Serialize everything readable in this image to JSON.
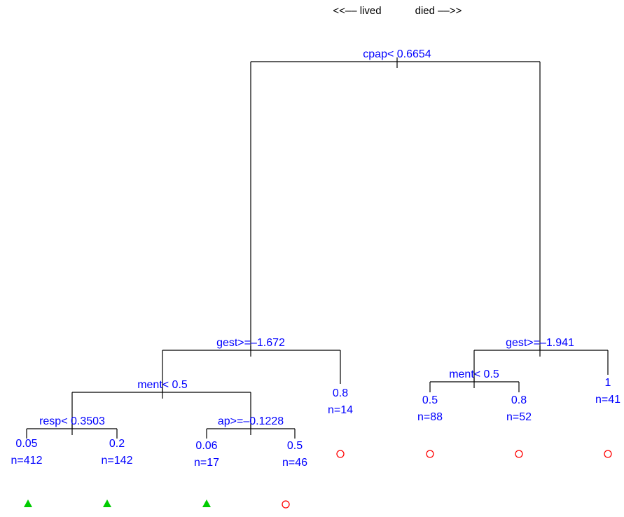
{
  "header": {
    "left": "<<–– lived",
    "right": "died ––>>"
  },
  "splits": [
    {
      "label": "cpap< 0.6654"
    },
    {
      "label": "gest>=–1.672"
    },
    {
      "label": "ment< 0.5"
    },
    {
      "label": "resp< 0.3503"
    },
    {
      "label": "ap>=–0.1228"
    },
    {
      "label": "gest>=–1.941"
    },
    {
      "label": "ment< 0.5"
    }
  ],
  "leaves": [
    {
      "value": "0.05",
      "n": "n=412"
    },
    {
      "value": "0.2",
      "n": "n=142"
    },
    {
      "value": "0.06",
      "n": "n=17"
    },
    {
      "value": "0.5",
      "n": "n=46"
    },
    {
      "value": "0.8",
      "n": "n=14"
    },
    {
      "value": "0.5",
      "n": "n=88"
    },
    {
      "value": "0.8",
      "n": "n=52"
    },
    {
      "value": "1",
      "n": "n=41"
    }
  ]
}
